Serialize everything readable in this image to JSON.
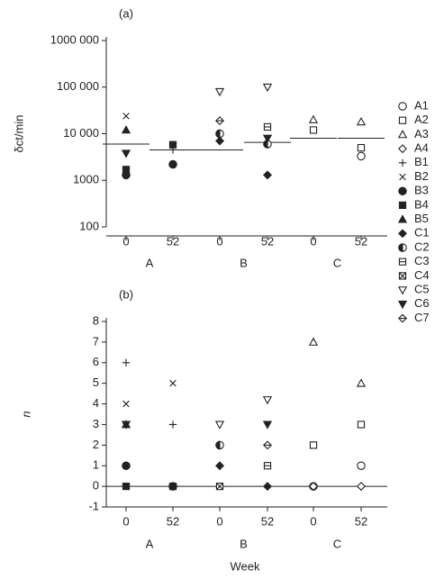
{
  "chart_data": [
    {
      "type": "scatter",
      "title": "(a)",
      "ylabel": "δct/min",
      "log_y": true,
      "categories": [
        "0",
        "52",
        "0",
        "52",
        "0",
        "52"
      ],
      "groups": [
        "A",
        "B",
        "C"
      ],
      "ylim": [
        100,
        1000000
      ],
      "yticks": [
        {
          "value": 1000000,
          "label": "1000 000"
        },
        {
          "value": 100000,
          "label": "100 000"
        },
        {
          "value": 10000,
          "label": "10 000"
        },
        {
          "value": 1000,
          "label": "1000"
        },
        {
          "value": 100,
          "label": "100"
        }
      ],
      "medians": [
        6000,
        4500,
        4500,
        6500,
        8000,
        8000
      ],
      "series": [
        {
          "name": "A1",
          "marker": "circle-open",
          "values": [
            null,
            null,
            null,
            null,
            null,
            3300
          ]
        },
        {
          "name": "A2",
          "marker": "square-open",
          "values": [
            null,
            null,
            null,
            null,
            12000,
            5000
          ]
        },
        {
          "name": "A3",
          "marker": "triangle-up-open",
          "values": [
            null,
            null,
            null,
            null,
            20000,
            18000
          ]
        },
        {
          "name": "A4",
          "marker": "diamond-open",
          "values": [
            null,
            null,
            null,
            null,
            null,
            null
          ]
        },
        {
          "name": "B1",
          "marker": "plus",
          "values": [
            null,
            4500,
            null,
            null,
            null,
            null
          ]
        },
        {
          "name": "B2",
          "marker": "cross",
          "values": [
            24000,
            null,
            null,
            null,
            null,
            null
          ]
        },
        {
          "name": "B3",
          "marker": "circle-filled",
          "values": [
            1300,
            2200,
            null,
            null,
            null,
            null
          ]
        },
        {
          "name": "B4",
          "marker": "square-filled",
          "values": [
            1700,
            5800,
            null,
            null,
            null,
            null
          ]
        },
        {
          "name": "B5",
          "marker": "triangle-up-filled",
          "values": [
            12000,
            null,
            null,
            null,
            null,
            null
          ]
        },
        {
          "name": "C1",
          "marker": "diamond-filled",
          "values": [
            null,
            null,
            7000,
            1300,
            null,
            null
          ]
        },
        {
          "name": "C2",
          "marker": "circle-half",
          "values": [
            null,
            null,
            10000,
            6000,
            null,
            null
          ]
        },
        {
          "name": "C3",
          "marker": "square-line",
          "values": [
            null,
            null,
            null,
            14000,
            null,
            null
          ]
        },
        {
          "name": "C4",
          "marker": "square-x",
          "values": [
            null,
            null,
            null,
            null,
            null,
            null
          ]
        },
        {
          "name": "C5",
          "marker": "triangle-down-open",
          "values": [
            null,
            null,
            80000,
            100000,
            null,
            null
          ]
        },
        {
          "name": "C6",
          "marker": "triangle-down-filled",
          "values": [
            3800,
            null,
            null,
            8000,
            null,
            null
          ]
        },
        {
          "name": "C7",
          "marker": "diamond-line",
          "values": [
            null,
            null,
            19000,
            null,
            null,
            null
          ]
        }
      ]
    },
    {
      "type": "scatter",
      "title": "(b)",
      "ylabel": "n",
      "xlabel": "Week",
      "categories": [
        "0",
        "52",
        "0",
        "52",
        "0",
        "52"
      ],
      "groups": [
        "A",
        "B",
        "C"
      ],
      "ylim": [
        -1,
        8
      ],
      "yticks": [
        -1,
        0,
        1,
        2,
        3,
        4,
        5,
        6,
        7,
        8
      ],
      "hline": 0,
      "series": [
        {
          "marker": "circle-open",
          "values": [
            null,
            null,
            null,
            null,
            0,
            1
          ]
        },
        {
          "marker": "square-open",
          "values": [
            null,
            null,
            null,
            null,
            2,
            3
          ]
        },
        {
          "marker": "triangle-up-open",
          "values": [
            null,
            null,
            null,
            null,
            7,
            5
          ]
        },
        {
          "marker": "diamond-open",
          "values": [
            null,
            null,
            null,
            null,
            0,
            0
          ]
        },
        {
          "marker": "plus",
          "values": [
            6,
            3,
            null,
            null,
            null,
            null
          ]
        },
        {
          "marker": "cross",
          "values": [
            4,
            5,
            null,
            null,
            null,
            null
          ]
        },
        {
          "marker": "circle-filled",
          "values": [
            1,
            0,
            null,
            null,
            null,
            null
          ]
        },
        {
          "marker": "square-filled",
          "values": [
            0,
            0,
            null,
            null,
            null,
            null
          ]
        },
        {
          "marker": "triangle-up-filled",
          "values": [
            3,
            null,
            null,
            null,
            null,
            null
          ]
        },
        {
          "marker": "diamond-filled",
          "values": [
            null,
            null,
            1,
            0,
            null,
            null
          ]
        },
        {
          "marker": "circle-half",
          "values": [
            null,
            null,
            2,
            null,
            null,
            null
          ]
        },
        {
          "marker": "square-line",
          "values": [
            null,
            null,
            null,
            1,
            null,
            null
          ]
        },
        {
          "marker": "square-x",
          "values": [
            null,
            null,
            0,
            null,
            null,
            null
          ]
        },
        {
          "marker": "triangle-down-open",
          "values": [
            null,
            null,
            3,
            4.2,
            null,
            null
          ]
        },
        {
          "marker": "triangle-down-filled",
          "values": [
            3,
            null,
            null,
            3,
            null,
            null
          ]
        },
        {
          "marker": "diamond-line",
          "values": [
            null,
            null,
            null,
            2,
            null,
            null
          ]
        }
      ]
    }
  ]
}
